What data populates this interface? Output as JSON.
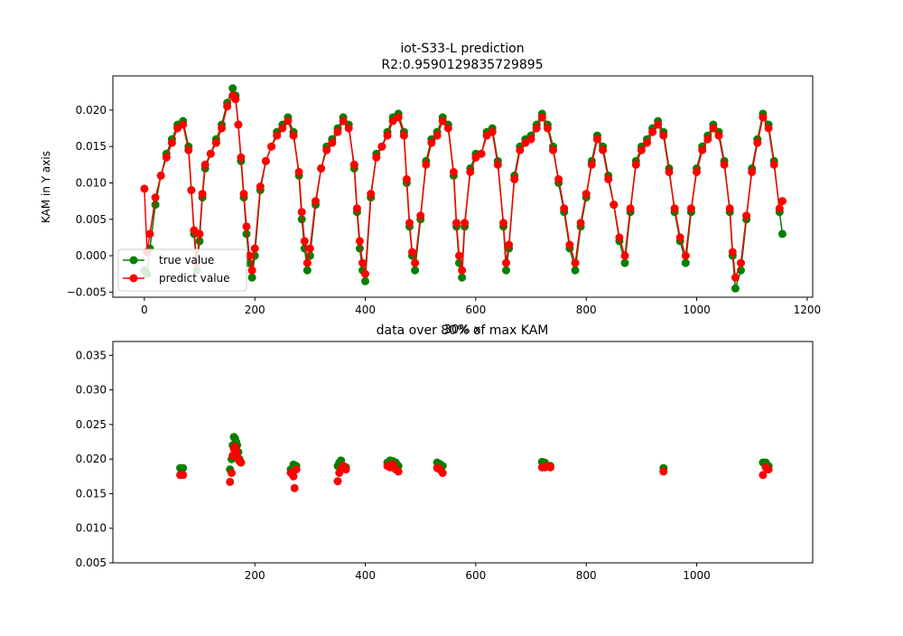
{
  "colors": {
    "true_value": "#008000",
    "predict_value": "#ff0000",
    "axis": "#000000",
    "background": "#ffffff"
  },
  "chart_data": [
    {
      "type": "line",
      "title": "iot-S33-L prediction",
      "subtitle": "R2:0.9590129835729895",
      "xlabel": "",
      "ylabel": "KAM in Y axis",
      "xlim": [
        -57,
        1210
      ],
      "ylim": [
        -0.0057,
        0.0247
      ],
      "xticks": [
        0,
        200,
        400,
        600,
        800,
        1000,
        1200
      ],
      "yticks": [
        -0.005,
        0.0,
        0.005,
        0.01,
        0.015,
        0.02
      ],
      "xtick_labels": [
        "0",
        "200",
        "400",
        "600",
        "800",
        "1000",
        "1200"
      ],
      "ytick_labels": [
        "−0.005",
        "0.000",
        "0.005",
        "0.010",
        "0.015",
        "0.020"
      ],
      "grid": false,
      "legend_position": "lower-left",
      "markers": "circle",
      "series": [
        {
          "name": "true value",
          "color": "#008000",
          "x": [
            0,
            5,
            10,
            20,
            30,
            40,
            50,
            60,
            70,
            80,
            85,
            90,
            95,
            100,
            105,
            110,
            120,
            130,
            140,
            150,
            160,
            165,
            170,
            175,
            180,
            185,
            190,
            195,
            200,
            210,
            220,
            230,
            240,
            250,
            260,
            270,
            280,
            285,
            290,
            295,
            300,
            310,
            320,
            330,
            340,
            350,
            360,
            370,
            380,
            385,
            390,
            395,
            400,
            410,
            420,
            430,
            440,
            450,
            460,
            470,
            475,
            480,
            485,
            490,
            500,
            510,
            520,
            530,
            540,
            550,
            560,
            565,
            570,
            575,
            580,
            590,
            600,
            610,
            620,
            630,
            640,
            650,
            655,
            660,
            670,
            680,
            690,
            700,
            710,
            720,
            730,
            740,
            750,
            760,
            770,
            780,
            790,
            800,
            810,
            820,
            830,
            840,
            850,
            860,
            870,
            880,
            890,
            900,
            910,
            920,
            930,
            940,
            950,
            960,
            970,
            980,
            990,
            1000,
            1010,
            1020,
            1030,
            1040,
            1050,
            1060,
            1065,
            1070,
            1080,
            1090,
            1100,
            1110,
            1120,
            1130,
            1140,
            1150,
            1155
          ],
          "values": [
            -0.002,
            -0.0025,
            0.001,
            0.007,
            0.011,
            0.014,
            0.016,
            0.018,
            0.0185,
            0.015,
            0.009,
            0.003,
            -0.002,
            0.002,
            0.008,
            0.012,
            0.014,
            0.016,
            0.018,
            0.021,
            0.023,
            0.022,
            0.018,
            0.013,
            0.008,
            0.003,
            -0.001,
            -0.003,
            0.0,
            0.009,
            0.013,
            0.015,
            0.017,
            0.018,
            0.019,
            0.017,
            0.011,
            0.005,
            0.001,
            -0.002,
            0.0,
            0.007,
            0.012,
            0.015,
            0.016,
            0.0175,
            0.019,
            0.018,
            0.012,
            0.006,
            0.001,
            -0.002,
            -0.0035,
            0.008,
            0.014,
            0.015,
            0.017,
            0.019,
            0.0195,
            0.017,
            0.01,
            0.004,
            0.0,
            -0.002,
            0.005,
            0.013,
            0.016,
            0.017,
            0.019,
            0.018,
            0.011,
            0.004,
            -0.001,
            -0.003,
            0.004,
            0.012,
            0.014,
            0.014,
            0.017,
            0.0175,
            0.013,
            0.004,
            -0.002,
            0.001,
            0.011,
            0.015,
            0.016,
            0.0165,
            0.018,
            0.0195,
            0.018,
            0.015,
            0.01,
            0.006,
            0.001,
            -0.002,
            0.004,
            0.008,
            0.013,
            0.0165,
            0.015,
            0.011,
            0.007,
            0.002,
            -0.001,
            0.006,
            0.013,
            0.015,
            0.016,
            0.0175,
            0.0185,
            0.017,
            0.012,
            0.006,
            0.002,
            -0.001,
            0.006,
            0.012,
            0.015,
            0.0165,
            0.018,
            0.017,
            0.013,
            0.006,
            0.0,
            -0.0045,
            -0.002,
            0.005,
            0.012,
            0.016,
            0.0195,
            0.018,
            0.013,
            0.006,
            0.003
          ]
        },
        {
          "name": "predict value",
          "color": "#ff0000",
          "x": [
            0,
            5,
            10,
            20,
            30,
            40,
            50,
            60,
            70,
            80,
            85,
            90,
            95,
            100,
            105,
            110,
            120,
            130,
            140,
            150,
            160,
            165,
            170,
            175,
            180,
            185,
            190,
            195,
            200,
            210,
            220,
            230,
            240,
            250,
            260,
            270,
            280,
            285,
            290,
            295,
            300,
            310,
            320,
            330,
            340,
            350,
            360,
            370,
            380,
            385,
            390,
            395,
            400,
            410,
            420,
            430,
            440,
            450,
            460,
            470,
            475,
            480,
            485,
            490,
            500,
            510,
            520,
            530,
            540,
            550,
            560,
            565,
            570,
            575,
            580,
            590,
            600,
            610,
            620,
            630,
            640,
            650,
            655,
            660,
            670,
            680,
            690,
            700,
            710,
            720,
            730,
            740,
            750,
            760,
            770,
            780,
            790,
            800,
            810,
            820,
            830,
            840,
            850,
            860,
            870,
            880,
            890,
            900,
            910,
            920,
            930,
            940,
            950,
            960,
            970,
            980,
            990,
            1000,
            1010,
            1020,
            1030,
            1040,
            1050,
            1060,
            1065,
            1070,
            1080,
            1090,
            1100,
            1110,
            1120,
            1130,
            1140,
            1150,
            1155
          ],
          "values": [
            0.0092,
            0.0005,
            0.003,
            0.008,
            0.011,
            0.0135,
            0.0155,
            0.0175,
            0.018,
            0.0145,
            0.009,
            0.0035,
            -0.001,
            0.003,
            0.0085,
            0.0125,
            0.014,
            0.0155,
            0.0175,
            0.0205,
            0.022,
            0.0215,
            0.018,
            0.0135,
            0.0085,
            0.004,
            0.0,
            -0.002,
            0.001,
            0.0095,
            0.013,
            0.015,
            0.0165,
            0.0175,
            0.0185,
            0.0165,
            0.0115,
            0.006,
            0.002,
            -0.001,
            0.001,
            0.0075,
            0.012,
            0.0145,
            0.0155,
            0.017,
            0.0185,
            0.0175,
            0.0125,
            0.0065,
            0.002,
            -0.001,
            -0.0025,
            0.0085,
            0.0135,
            0.015,
            0.0165,
            0.0185,
            0.019,
            0.0165,
            0.0105,
            0.0045,
            0.0005,
            -0.001,
            0.0055,
            0.0125,
            0.0155,
            0.0165,
            0.0185,
            0.0175,
            0.0115,
            0.0045,
            0.0,
            -0.002,
            0.0045,
            0.0115,
            0.0135,
            0.014,
            0.0165,
            0.017,
            0.0125,
            0.0045,
            -0.001,
            0.0015,
            0.0105,
            0.0145,
            0.0155,
            0.016,
            0.0175,
            0.019,
            0.0175,
            0.0145,
            0.0105,
            0.0065,
            0.0015,
            -0.001,
            0.0045,
            0.0085,
            0.0125,
            0.016,
            0.0145,
            0.0105,
            0.007,
            0.0025,
            0.0,
            0.0065,
            0.0125,
            0.0145,
            0.0155,
            0.017,
            0.018,
            0.0165,
            0.0115,
            0.0065,
            0.0025,
            0.0,
            0.0065,
            0.0115,
            0.0145,
            0.016,
            0.0175,
            0.0165,
            0.0125,
            0.0065,
            0.0005,
            -0.003,
            -0.001,
            0.0055,
            0.0115,
            0.0155,
            0.019,
            0.0175,
            0.0125,
            0.0065,
            0.0075
          ]
        }
      ]
    },
    {
      "type": "scatter",
      "title": "data over 80% of max KAM",
      "xlabel": "",
      "ylabel": "",
      "xlim": [
        -57,
        1210
      ],
      "ylim": [
        0.005,
        0.037
      ],
      "xticks": [
        200,
        400,
        600,
        800,
        1000
      ],
      "yticks": [
        0.005,
        0.01,
        0.015,
        0.02,
        0.025,
        0.03,
        0.035
      ],
      "xtick_labels": [
        "200",
        "400",
        "600",
        "800",
        "1000"
      ],
      "ytick_labels": [
        "0.005",
        "0.010",
        "0.015",
        "0.020",
        "0.025",
        "0.030",
        "0.035"
      ],
      "grid": false,
      "series": [
        {
          "name": "true value",
          "color": "#008000",
          "x": [
            65,
            70,
            155,
            158,
            160,
            162,
            164,
            166,
            168,
            170,
            172,
            175,
            265,
            270,
            275,
            350,
            353,
            356,
            360,
            365,
            440,
            445,
            450,
            455,
            460,
            530,
            535,
            540,
            720,
            725,
            730,
            735,
            940,
            1120,
            1125,
            1130
          ],
          "values": [
            0.0187,
            0.0187,
            0.0185,
            0.02,
            0.022,
            0.0232,
            0.023,
            0.0225,
            0.022,
            0.021,
            0.02,
            0.0195,
            0.0185,
            0.0192,
            0.019,
            0.019,
            0.0195,
            0.0198,
            0.019,
            0.0188,
            0.0195,
            0.0198,
            0.0197,
            0.0195,
            0.019,
            0.0195,
            0.0193,
            0.019,
            0.0196,
            0.0195,
            0.019,
            0.019,
            0.0187,
            0.0195,
            0.0195,
            0.019
          ]
        },
        {
          "name": "predict value",
          "color": "#ff0000",
          "x": [
            65,
            70,
            155,
            158,
            160,
            162,
            164,
            166,
            168,
            170,
            172,
            175,
            265,
            270,
            272,
            275,
            350,
            353,
            356,
            360,
            365,
            440,
            445,
            450,
            455,
            460,
            530,
            535,
            540,
            720,
            725,
            730,
            735,
            940,
            1120,
            1125,
            1130
          ],
          "values": [
            0.0177,
            0.0177,
            0.0167,
            0.018,
            0.0205,
            0.0215,
            0.0218,
            0.0212,
            0.0205,
            0.02,
            0.0197,
            0.0195,
            0.018,
            0.0175,
            0.0158,
            0.0185,
            0.0168,
            0.018,
            0.0185,
            0.019,
            0.0185,
            0.019,
            0.0188,
            0.0192,
            0.0185,
            0.0182,
            0.0187,
            0.0185,
            0.018,
            0.0188,
            0.0188,
            0.019,
            0.0188,
            0.0182,
            0.0177,
            0.0188,
            0.0185
          ]
        }
      ]
    }
  ],
  "overlap_label": "30% x"
}
